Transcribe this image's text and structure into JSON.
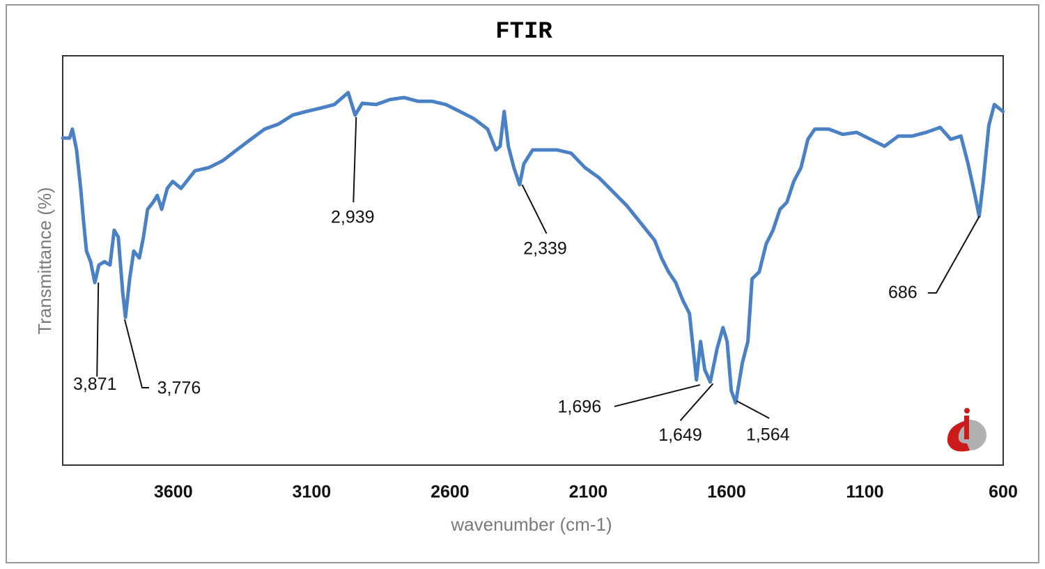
{
  "chart_data": {
    "type": "line",
    "title": "FTIR",
    "x_label": "wavenumber (cm-1)",
    "y_label": "Transmittance (%)",
    "xlim": [
      4000,
      600
    ],
    "ylim": [
      0,
      100
    ],
    "xticks": [
      3600,
      3100,
      2600,
      2100,
      1600,
      1100,
      600
    ],
    "grid": false,
    "color": "#4a80c4",
    "x": [
      4000,
      3975,
      3965,
      3950,
      3935,
      3924,
      3914,
      3899,
      3884,
      3869,
      3849,
      3829,
      3814,
      3799,
      3783,
      3773,
      3758,
      3743,
      3723,
      3708,
      3693,
      3673,
      3658,
      3642,
      3622,
      3602,
      3572,
      3522,
      3471,
      3421,
      3371,
      3320,
      3270,
      3220,
      3169,
      3119,
      3068,
      3018,
      2968,
      2943,
      2917,
      2867,
      2817,
      2766,
      2716,
      2666,
      2615,
      2565,
      2515,
      2464,
      2434,
      2419,
      2404,
      2389,
      2369,
      2348,
      2333,
      2301,
      2213,
      2162,
      2112,
      2061,
      2011,
      1961,
      1910,
      1860,
      1835,
      1810,
      1784,
      1759,
      1734,
      1709,
      1694,
      1679,
      1659,
      1634,
      1613,
      1598,
      1583,
      1567,
      1543,
      1523,
      1508,
      1482,
      1457,
      1432,
      1407,
      1382,
      1357,
      1331,
      1306,
      1281,
      1231,
      1180,
      1130,
      1080,
      1029,
      979,
      929,
      878,
      828,
      790,
      753,
      727,
      702,
      687,
      672,
      652,
      632,
      601
    ],
    "values": [
      79.9,
      79.9,
      82.1,
      77.0,
      67.6,
      59.1,
      52.3,
      49.7,
      44.6,
      48.9,
      49.7,
      48.9,
      57.4,
      55.7,
      42.1,
      36.1,
      45.5,
      52.3,
      50.6,
      55.7,
      62.5,
      64.2,
      65.9,
      62.5,
      67.6,
      69.3,
      67.6,
      71.9,
      72.7,
      74.4,
      77.0,
      79.6,
      82.1,
      83.3,
      85.5,
      86.4,
      87.2,
      88.1,
      91.0,
      85.5,
      88.4,
      88.1,
      89.3,
      89.8,
      88.9,
      88.9,
      88.1,
      86.4,
      84.7,
      82.1,
      77.0,
      77.9,
      86.4,
      77.9,
      72.7,
      68.5,
      73.6,
      77.0,
      77.0,
      76.2,
      72.7,
      70.2,
      66.8,
      63.4,
      59.1,
      54.9,
      50.6,
      47.2,
      44.6,
      40.4,
      37.0,
      20.8,
      30.2,
      23.3,
      20.3,
      28.5,
      33.6,
      30.2,
      18.2,
      15.2,
      25.0,
      30.2,
      45.5,
      47.2,
      54.0,
      57.4,
      62.5,
      64.2,
      69.3,
      72.7,
      79.6,
      82.1,
      82.1,
      80.8,
      81.3,
      79.6,
      77.9,
      80.4,
      80.4,
      81.3,
      82.5,
      79.6,
      80.4,
      73.6,
      65.9,
      60.8,
      69.3,
      83.0,
      88.1,
      86.4
    ],
    "annotations": [
      {
        "x": 3871,
        "y": 44.6,
        "label": "3,871"
      },
      {
        "x": 3776,
        "y": 35.6,
        "label": "3,776"
      },
      {
        "x": 2939,
        "y": 85.0,
        "label": "2,939"
      },
      {
        "x": 2339,
        "y": 68.5,
        "label": "2,339"
      },
      {
        "x": 1696,
        "y": 19.6,
        "label": "1,696"
      },
      {
        "x": 1649,
        "y": 19.9,
        "label": "1,649"
      },
      {
        "x": 1564,
        "y": 15.7,
        "label": "1,564"
      },
      {
        "x": 686,
        "y": 60.8,
        "label": "686"
      }
    ]
  }
}
